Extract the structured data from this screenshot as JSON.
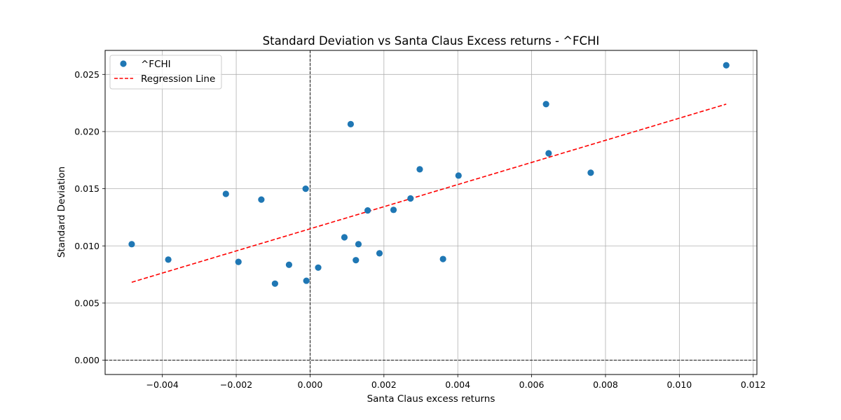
{
  "chart_data": {
    "type": "scatter",
    "title": "Standard Deviation vs Santa Claus Excess returns - ^FCHI",
    "xlabel": "Santa Claus excess returns",
    "ylabel": "Standard Deviation",
    "xlim": [
      -0.00555,
      0.0121
    ],
    "ylim": [
      -0.00125,
      0.0271
    ],
    "x_ticks": [
      -0.004,
      -0.002,
      0.0,
      0.002,
      0.004,
      0.006,
      0.008,
      0.01,
      0.012
    ],
    "x_tick_labels": [
      "−0.004",
      "−0.002",
      "0.000",
      "0.002",
      "0.004",
      "0.006",
      "0.008",
      "0.010",
      "0.012"
    ],
    "y_ticks": [
      0.0,
      0.005,
      0.01,
      0.015,
      0.02,
      0.025
    ],
    "y_tick_labels": [
      "0.000",
      "0.005",
      "0.010",
      "0.015",
      "0.020",
      "0.025"
    ],
    "grid": true,
    "legend_position": "top-left",
    "reference_lines": {
      "x": 0,
      "y": 0,
      "style": "dashed",
      "color": "#000000"
    },
    "series": [
      {
        "name": "^FCHI",
        "kind": "scatter",
        "color": "#1f77b4",
        "points": [
          {
            "x": -0.00483,
            "y": 0.01015
          },
          {
            "x": -0.00384,
            "y": 0.0088
          },
          {
            "x": -0.00228,
            "y": 0.01455
          },
          {
            "x": -0.00194,
            "y": 0.0086
          },
          {
            "x": -0.00132,
            "y": 0.01405
          },
          {
            "x": -0.00095,
            "y": 0.0067
          },
          {
            "x": -0.00057,
            "y": 0.00835
          },
          {
            "x": -0.00012,
            "y": 0.015
          },
          {
            "x": -0.0001,
            "y": 0.00695
          },
          {
            "x": 0.00022,
            "y": 0.0081
          },
          {
            "x": 0.00093,
            "y": 0.01075
          },
          {
            "x": 0.0011,
            "y": 0.02065
          },
          {
            "x": 0.00124,
            "y": 0.00875
          },
          {
            "x": 0.00131,
            "y": 0.01015
          },
          {
            "x": 0.00156,
            "y": 0.0131
          },
          {
            "x": 0.00188,
            "y": 0.00935
          },
          {
            "x": 0.00226,
            "y": 0.01315
          },
          {
            "x": 0.00272,
            "y": 0.01415
          },
          {
            "x": 0.00297,
            "y": 0.0167
          },
          {
            "x": 0.0036,
            "y": 0.00885
          },
          {
            "x": 0.00402,
            "y": 0.01615
          },
          {
            "x": 0.00639,
            "y": 0.0224
          },
          {
            "x": 0.00646,
            "y": 0.0181
          },
          {
            "x": 0.0076,
            "y": 0.0164
          },
          {
            "x": 0.01127,
            "y": 0.0258
          }
        ]
      },
      {
        "name": "Regression Line",
        "kind": "line",
        "style": "dashed",
        "color": "#ff0000",
        "points": [
          {
            "x": -0.00483,
            "y": 0.00682
          },
          {
            "x": 0.01127,
            "y": 0.0224
          }
        ]
      }
    ]
  }
}
